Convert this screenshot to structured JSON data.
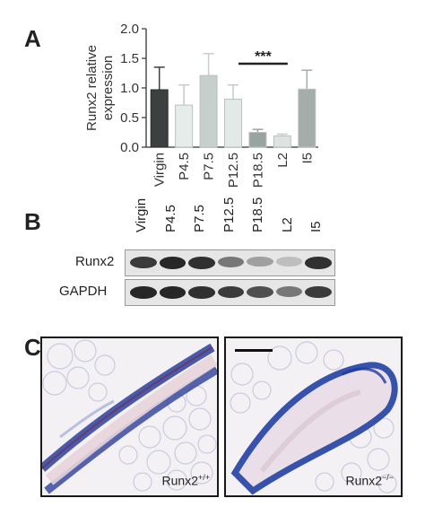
{
  "panels": {
    "a": "A",
    "b": "B",
    "c": "C"
  },
  "chart_data": {
    "type": "bar",
    "categories": [
      "Virgin",
      "P4.5",
      "P7.5",
      "P12.5",
      "P18.5",
      "L2",
      "I5"
    ],
    "values": [
      0.97,
      0.71,
      1.21,
      0.81,
      0.25,
      0.19,
      0.98
    ],
    "errors": [
      0.38,
      0.34,
      0.37,
      0.24,
      0.05,
      0.03,
      0.32
    ],
    "colors": [
      "#3d4040",
      "#e6ecea",
      "#c6cfcb",
      "#e3e9e6",
      "#9aa3a0",
      "#dde3e0",
      "#a5adaa"
    ],
    "ylabel": "Runx2 relative expression",
    "ylabel_lines": [
      "Runx2 relative",
      "expression"
    ],
    "ylim": [
      0,
      2.0
    ],
    "yticks": [
      "0.0",
      "0.5",
      "1.0",
      "1.5",
      "2.0"
    ],
    "ytick_values": [
      0,
      0.5,
      1.0,
      1.5,
      2.0
    ],
    "annotation": {
      "text": "***",
      "from": "P12.5",
      "to": "P18.5"
    },
    "grid": false
  },
  "blot": {
    "lanes": [
      "Virgin",
      "P4.5",
      "P7.5",
      "P12.5",
      "P18.5",
      "L2",
      "I5"
    ],
    "rows": [
      {
        "label": "Runx2",
        "intensity": [
          0.85,
          0.95,
          0.9,
          0.55,
          0.35,
          0.2,
          0.9
        ]
      },
      {
        "label": "GAPDH",
        "intensity": [
          0.95,
          0.95,
          0.9,
          0.85,
          0.75,
          0.55,
          0.85
        ]
      }
    ]
  },
  "micrographs": [
    {
      "label_base": "Runx2",
      "label_sup": "+/+"
    },
    {
      "label_base": "Runx2",
      "label_sup": "−/−"
    }
  ]
}
